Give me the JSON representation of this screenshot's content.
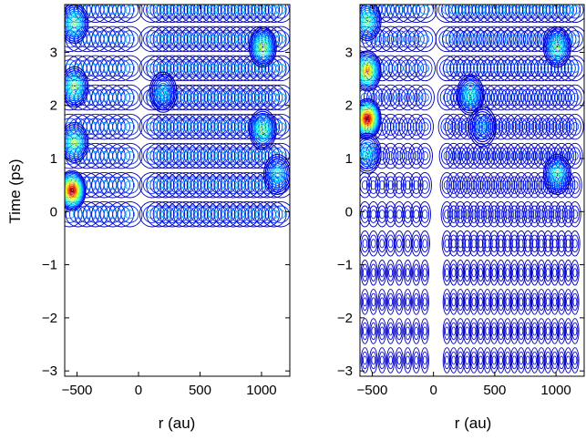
{
  "chart_data": [
    {
      "type": "contour",
      "xlabel": "r (au)",
      "ylabel": "Time (ps)",
      "xlim": [
        -600,
        1230
      ],
      "ylim": [
        -3.1,
        3.9
      ],
      "xticks": [
        -500,
        0,
        500,
        1000
      ],
      "yticks": [
        -3,
        -2,
        -1,
        0,
        1,
        2,
        3
      ],
      "xtick_labels": [
        "−500",
        "0",
        "500",
        "1000"
      ],
      "ytick_labels": [
        "−3",
        "−2",
        "−1",
        "0",
        "1",
        "2",
        "3"
      ],
      "colormap": "jet",
      "line_color_low": "#00008f",
      "peaks": [
        {
          "r": -540,
          "t": 0.4,
          "level": 1.0
        },
        {
          "r": -520,
          "t": 1.3,
          "level": 0.55
        },
        {
          "r": -520,
          "t": 2.35,
          "level": 0.55
        },
        {
          "r": -520,
          "t": 3.55,
          "level": 0.5
        },
        {
          "r": 1010,
          "t": 3.1,
          "level": 0.6
        },
        {
          "r": 1010,
          "t": 1.55,
          "level": 0.55
        },
        {
          "r": 1130,
          "t": 0.7,
          "level": 0.4
        },
        {
          "r": 200,
          "t": 2.25,
          "level": 0.35
        }
      ]
    },
    {
      "type": "contour",
      "xlabel": "r (au)",
      "ylabel": "",
      "xlim": [
        -600,
        1230
      ],
      "ylim": [
        -3.1,
        3.9
      ],
      "xticks": [
        -500,
        0,
        500,
        1000
      ],
      "yticks": [
        -3,
        -2,
        -1,
        0,
        1,
        2,
        3
      ],
      "xtick_labels": [
        "−500",
        "0",
        "500",
        "1000"
      ],
      "ytick_labels": [
        "−3",
        "−2",
        "−1",
        "0",
        "1",
        "2",
        "3"
      ],
      "colormap": "jet",
      "line_color_low": "#00008f",
      "peaks": [
        {
          "r": -540,
          "t": 1.75,
          "level": 1.0
        },
        {
          "r": -540,
          "t": 2.65,
          "level": 0.75
        },
        {
          "r": -540,
          "t": 3.6,
          "level": 0.5
        },
        {
          "r": -540,
          "t": 1.1,
          "level": 0.4
        },
        {
          "r": 1010,
          "t": 3.1,
          "level": 0.5
        },
        {
          "r": 1010,
          "t": 0.7,
          "level": 0.45
        },
        {
          "r": 300,
          "t": 2.2,
          "level": 0.45
        },
        {
          "r": 400,
          "t": 1.6,
          "level": 0.3
        }
      ]
    }
  ]
}
